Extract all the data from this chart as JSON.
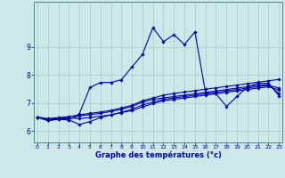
{
  "title": "",
  "xlabel": "Graphe des températures (°c)",
  "background_color": "#cce8e8",
  "grid_color": "#aacccc",
  "line_color": "#0000aa",
  "xlim": [
    -0.3,
    23.3
  ],
  "ylim": [
    5.6,
    10.6
  ],
  "xticks": [
    0,
    1,
    2,
    3,
    4,
    5,
    6,
    7,
    8,
    9,
    10,
    11,
    12,
    13,
    14,
    15,
    16,
    17,
    18,
    19,
    20,
    21,
    22,
    23
  ],
  "yticks": [
    6,
    7,
    8,
    9
  ],
  "curve1_x": [
    0,
    1,
    2,
    3,
    4,
    5,
    6,
    7,
    8,
    9,
    10,
    11,
    12,
    13,
    14,
    15,
    16,
    17,
    18,
    19,
    20,
    21,
    22,
    23
  ],
  "curve1_y": [
    6.5,
    6.45,
    6.48,
    6.52,
    6.58,
    6.63,
    6.68,
    6.74,
    6.82,
    6.92,
    7.08,
    7.18,
    7.28,
    7.34,
    7.39,
    7.44,
    7.49,
    7.54,
    7.59,
    7.64,
    7.69,
    7.74,
    7.79,
    7.84
  ],
  "curve2_x": [
    0,
    1,
    2,
    3,
    4,
    5,
    6,
    7,
    8,
    9,
    10,
    11,
    12,
    13,
    14,
    15,
    16,
    17,
    18,
    19,
    20,
    21,
    22,
    23
  ],
  "curve2_y": [
    6.5,
    6.42,
    6.45,
    6.48,
    6.44,
    6.49,
    6.53,
    6.58,
    6.67,
    6.78,
    6.93,
    7.03,
    7.13,
    7.18,
    7.23,
    7.28,
    7.33,
    7.38,
    7.43,
    7.48,
    7.53,
    7.58,
    7.63,
    7.53
  ],
  "curve3_x": [
    0,
    1,
    2,
    3,
    4,
    5,
    6,
    7,
    8,
    9,
    10,
    11,
    12,
    13,
    14,
    15,
    16,
    17,
    18,
    19,
    20,
    21,
    22,
    23
  ],
  "curve3_y": [
    6.5,
    6.38,
    6.44,
    6.44,
    6.54,
    6.59,
    6.63,
    6.7,
    6.78,
    6.88,
    7.03,
    7.13,
    7.18,
    7.23,
    7.28,
    7.33,
    7.38,
    7.43,
    7.48,
    7.53,
    7.58,
    7.63,
    7.66,
    7.33
  ],
  "curve4_x": [
    0,
    1,
    2,
    3,
    4,
    5,
    6,
    7,
    8,
    9,
    10,
    11,
    12,
    13,
    14,
    15,
    16,
    17,
    18,
    19,
    20,
    21,
    22,
    23
  ],
  "curve4_y": [
    6.5,
    6.38,
    6.42,
    6.4,
    6.62,
    7.55,
    7.73,
    7.73,
    7.83,
    8.28,
    8.73,
    9.68,
    9.18,
    9.43,
    9.08,
    9.53,
    7.38,
    7.33,
    6.88,
    7.23,
    7.58,
    7.7,
    7.7,
    7.26
  ],
  "curve5_x": [
    0,
    1,
    2,
    3,
    4,
    5,
    6,
    7,
    8,
    9,
    10,
    11,
    12,
    13,
    14,
    15,
    16,
    17,
    18,
    19,
    20,
    21,
    22,
    23
  ],
  "curve5_y": [
    6.5,
    6.38,
    6.42,
    6.4,
    6.24,
    6.34,
    6.48,
    6.58,
    6.66,
    6.73,
    6.86,
    6.98,
    7.08,
    7.13,
    7.18,
    7.23,
    7.28,
    7.33,
    7.38,
    7.43,
    7.48,
    7.53,
    7.58,
    7.46
  ]
}
